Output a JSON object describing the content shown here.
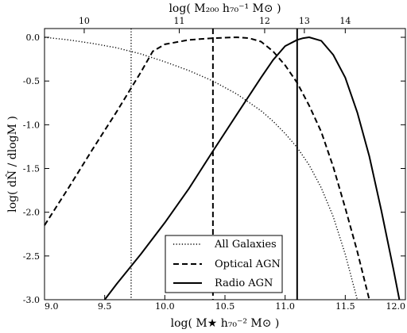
{
  "chart_data": {
    "type": "line",
    "xlabel_bottom": "log( M★ h₇₀⁻² M⊙ )",
    "xlabel_top": "log( M₂₀₀ h₇₀⁻¹ M⊙ )",
    "ylabel": "log( dN̂ / dlogM )",
    "xlim": [
      9.0,
      12.0
    ],
    "ylim": [
      -3.0,
      0.1
    ],
    "x_ticks": [
      "9.0",
      "9.5",
      "10.0",
      "10.5",
      "11.0",
      "11.5",
      "12.0"
    ],
    "y_ticks": [
      "0.0",
      "-0.5",
      "-1.0",
      "-1.5",
      "-2.0",
      "-2.5",
      "-3.0"
    ],
    "top_ticks": [
      {
        "label": "10",
        "x": 9.33
      },
      {
        "label": "11",
        "x": 10.12
      },
      {
        "label": "12",
        "x": 10.83
      },
      {
        "label": "13",
        "x": 11.16
      },
      {
        "label": "14",
        "x": 11.5
      }
    ],
    "series": [
      {
        "name": "All Galaxies",
        "style": "dotted",
        "x": [
          9.0,
          9.2,
          9.4,
          9.6,
          9.8,
          10.0,
          10.2,
          10.4,
          10.6,
          10.8,
          10.9,
          11.0,
          11.1,
          11.2,
          11.3,
          11.4,
          11.5,
          11.6
        ],
        "y": [
          0.0,
          -0.03,
          -0.07,
          -0.12,
          -0.19,
          -0.28,
          -0.38,
          -0.5,
          -0.65,
          -0.84,
          -0.96,
          -1.1,
          -1.26,
          -1.46,
          -1.72,
          -2.05,
          -2.48,
          -3.0
        ]
      },
      {
        "name": "Optical AGN",
        "style": "dashed",
        "x": [
          9.0,
          9.2,
          9.4,
          9.6,
          9.8,
          9.9,
          10.0,
          10.2,
          10.4,
          10.6,
          10.7,
          10.8,
          10.9,
          11.0,
          11.1,
          11.2,
          11.3,
          11.4,
          11.5,
          11.6,
          11.7
        ],
        "y": [
          -2.15,
          -1.72,
          -1.28,
          -0.85,
          -0.4,
          -0.16,
          -0.08,
          -0.03,
          -0.01,
          0.0,
          -0.01,
          -0.05,
          -0.16,
          -0.32,
          -0.52,
          -0.78,
          -1.08,
          -1.48,
          -1.95,
          -2.45,
          -3.0
        ]
      },
      {
        "name": "Radio AGN",
        "style": "solid",
        "x": [
          9.5,
          9.6,
          9.8,
          10.0,
          10.2,
          10.4,
          10.6,
          10.8,
          10.9,
          11.0,
          11.1,
          11.15,
          11.2,
          11.3,
          11.4,
          11.5,
          11.6,
          11.7,
          11.8,
          11.9,
          11.95
        ],
        "y": [
          -3.0,
          -2.82,
          -2.48,
          -2.12,
          -1.73,
          -1.3,
          -0.88,
          -0.46,
          -0.26,
          -0.1,
          -0.03,
          -0.01,
          0.0,
          -0.04,
          -0.2,
          -0.46,
          -0.86,
          -1.36,
          -1.98,
          -2.65,
          -3.0
        ]
      }
    ],
    "vlines": [
      {
        "x": 9.72,
        "style": "dotted"
      },
      {
        "x": 10.4,
        "style": "dashed"
      },
      {
        "x": 11.1,
        "style": "solid"
      }
    ],
    "legend": {
      "position": "lower-center",
      "entries": [
        "All Galaxies",
        "Optical AGN",
        "Radio AGN"
      ]
    }
  }
}
